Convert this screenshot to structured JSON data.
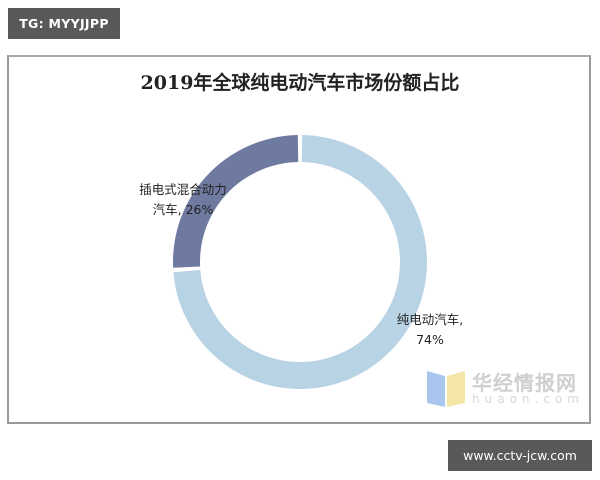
{
  "header_tag": "TG: MYYJJPP",
  "footer_site": "www.cctv-jcw.com",
  "watermark": {
    "cn": "华经情报网",
    "en": "huaon.com"
  },
  "chart_data": {
    "type": "pie",
    "variant": "donut",
    "title": "2019年全球纯电动汽车市场份额占比",
    "categories": [
      "纯电动汽车",
      "插电式混合动力汽车"
    ],
    "values": [
      74,
      26
    ],
    "unit": "%",
    "colors": [
      "#b7d3e4",
      "#6f7aa0"
    ],
    "labels": [
      {
        "line1": "纯电动汽车,",
        "line2": "74%"
      },
      {
        "line1": "插电式混合动力",
        "line2": "汽车, 26%"
      }
    ],
    "legend": "none",
    "data_labels": true
  }
}
